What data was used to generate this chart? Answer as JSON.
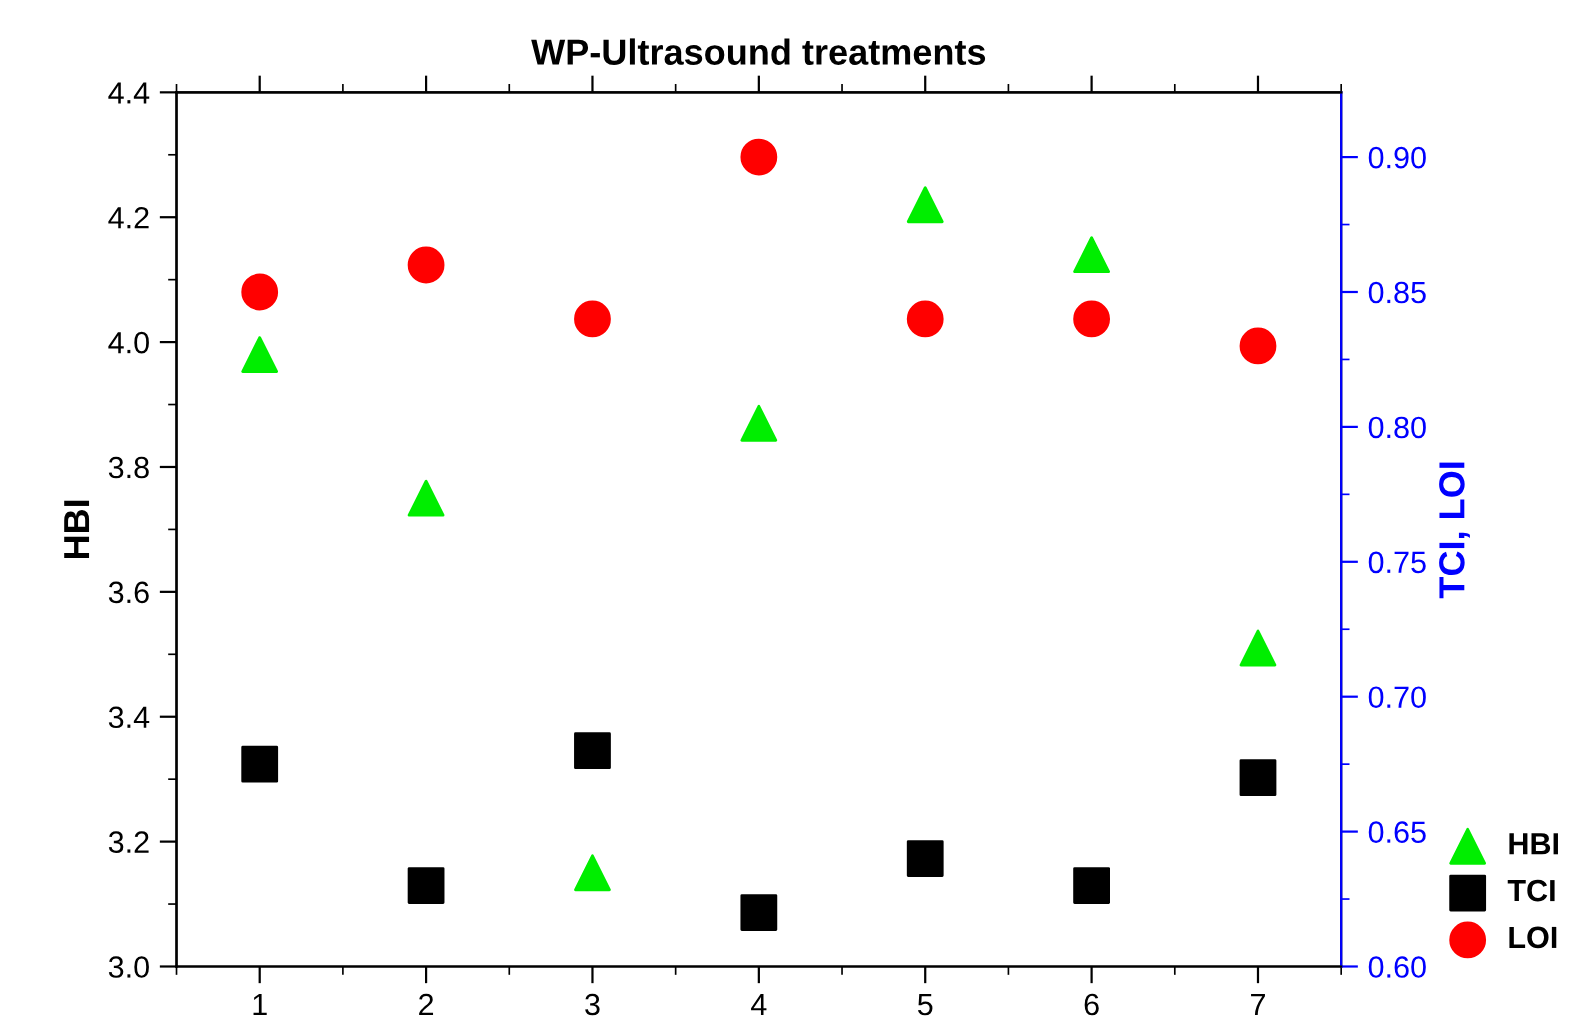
{
  "chart_data": {
    "type": "scatter",
    "title": "WP-Ultrasound treatments",
    "ylabel": "HBI",
    "y2label": "TCI, LOI",
    "x": [
      1,
      2,
      3,
      4,
      5,
      6,
      7
    ],
    "xlim": [
      0.5,
      7.5
    ],
    "xticks": [
      1,
      2,
      3,
      4,
      5,
      6,
      7
    ],
    "ylim": [
      3.0,
      4.4
    ],
    "yticks": [
      {
        "value": 3.0,
        "label": "3.0"
      },
      {
        "value": 3.2,
        "label": "3.2"
      },
      {
        "value": 3.4,
        "label": "3.4"
      },
      {
        "value": 3.6,
        "label": "3.6"
      },
      {
        "value": 3.8,
        "label": "3.8"
      },
      {
        "value": 4.0,
        "label": "4.0"
      },
      {
        "value": 4.2,
        "label": "4.2"
      },
      {
        "value": 4.4,
        "label": "4.4"
      }
    ],
    "y2lim": [
      0.6,
      0.924
    ],
    "y2ticks": [
      {
        "value": 0.6,
        "label": "0.60"
      },
      {
        "value": 0.65,
        "label": "0.65"
      },
      {
        "value": 0.7,
        "label": "0.70"
      },
      {
        "value": 0.75,
        "label": "0.75"
      },
      {
        "value": 0.8,
        "label": "0.80"
      },
      {
        "value": 0.85,
        "label": "0.85"
      },
      {
        "value": 0.9,
        "label": "0.90"
      }
    ],
    "series": [
      {
        "name": "HBI",
        "color": "#00ee00",
        "marker": "triangle",
        "values": [
          3.98,
          3.75,
          3.15,
          3.87,
          4.22,
          4.14,
          3.51
        ]
      },
      {
        "name": "TCI",
        "color": "#000000",
        "marker": "square",
        "axis": "y2",
        "values": [
          0.675,
          0.63,
          0.68,
          0.62,
          0.64,
          0.63,
          0.67
        ]
      },
      {
        "name": "LOI",
        "color": "#ff0000",
        "marker": "circle",
        "axis": "y2",
        "values": [
          0.85,
          0.86,
          0.84,
          0.9,
          0.84,
          0.84,
          0.83
        ]
      }
    ],
    "legend": "bottom right",
    "grid": false
  }
}
